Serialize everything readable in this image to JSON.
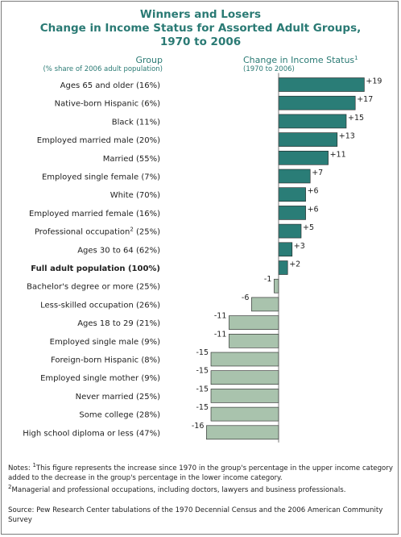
{
  "chart_data": {
    "type": "bar",
    "orientation": "horizontal",
    "title_lines": [
      "Winners and Losers",
      "Change in Income Status for Assorted Adult Groups,",
      "1970 to 2006"
    ],
    "category_header": "Group",
    "category_subheader": "(% share of 2006 adult population)",
    "value_header": "Change in Income Status",
    "value_header_sup": "1",
    "value_subheader": "(1970 to 2006)",
    "categories": [
      {
        "label": "Ages 65 and older (16%)"
      },
      {
        "label": "Native-born Hispanic (6%)"
      },
      {
        "label": "Black (11%)"
      },
      {
        "label": "Employed married male (20%)"
      },
      {
        "label": "Married (55%)"
      },
      {
        "label": "Employed single female (7%)"
      },
      {
        "label": "White (70%)"
      },
      {
        "label": "Employed married female (16%)"
      },
      {
        "label": "Professional occupation",
        "sup": "2",
        "suffix": " (25%)"
      },
      {
        "label": "Ages 30 to 64 (62%)"
      },
      {
        "label": "Full adult population (100%)",
        "bold": true
      },
      {
        "label": "Bachelor's degree or more (25%)"
      },
      {
        "label": "Less-skilled occupation (26%)"
      },
      {
        "label": "Ages 18 to 29 (21%)"
      },
      {
        "label": "Employed single male (9%)"
      },
      {
        "label": "Foreign-born Hispanic (8%)"
      },
      {
        "label": "Employed single mother (9%)"
      },
      {
        "label": "Never married (25%)"
      },
      {
        "label": "Some college (28%)"
      },
      {
        "label": "High school diploma or less (47%)"
      }
    ],
    "values": [
      19,
      17,
      15,
      13,
      11,
      7,
      6,
      6,
      5,
      3,
      2,
      -1,
      -6,
      -11,
      -11,
      -15,
      -15,
      -15,
      -15,
      -16
    ],
    "value_labels": [
      "+19",
      "+17",
      "+15",
      "+13",
      "+11",
      "+7",
      "+6",
      "+6",
      "+5",
      "+3",
      "+2",
      "-1",
      "-6",
      "-11",
      "-11",
      "-15",
      "-15",
      "-15",
      "-15",
      "-16"
    ],
    "colors": {
      "positive": "#2a7d77",
      "negative": "#a9c3ad",
      "stroke": "#222222",
      "title": "#2a7a74"
    }
  },
  "notes": {
    "prefix": "Notes: ",
    "note1_sup": "1",
    "note1": "This figure represents the increase since 1970 in the group's percentage in the upper income category added to the decrease in the group's percentage in the lower income category.",
    "note2_sup": "2",
    "note2": "Managerial and professional occupations, including doctors, lawyers and business professionals."
  },
  "source": "Source: Pew Research Center tabulations of the 1970 Decennial Census and the 2006 American Community Survey"
}
